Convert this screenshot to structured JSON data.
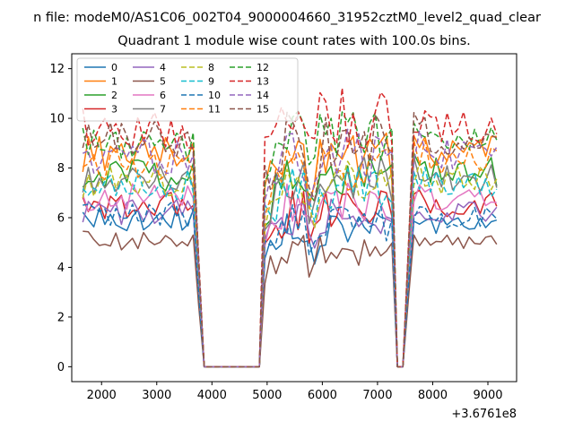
{
  "chart_data": {
    "type": "line",
    "suptitle": "n file: modeM0/AS1C06_002T04_9000004660_31952cztM0_level2_quad_clear",
    "title": "Quadrant 1 module wise count rates with 100.0s bins.",
    "xlabel": "",
    "ylabel": "",
    "offset_text": "+3.6761e8",
    "xlim": [
      1460,
      9520
    ],
    "ylim": [
      -0.6,
      12.6
    ],
    "xticks": [
      2000,
      3000,
      4000,
      5000,
      6000,
      7000,
      8000,
      9000
    ],
    "xtick_labels": [
      "2000",
      "3000",
      "4000",
      "5000",
      "6000",
      "7000",
      "8000",
      "9000"
    ],
    "yticks": [
      0,
      2,
      4,
      6,
      8,
      10,
      12
    ],
    "ytick_labels": [
      "0",
      "2",
      "4",
      "6",
      "8",
      "10",
      "12"
    ],
    "legend": {
      "location": "upper-left",
      "columns": 4
    },
    "grid": false,
    "x_start": 1660,
    "x_step": 100,
    "series": [
      {
        "name": "0",
        "color": "#1f77b4",
        "dash": "solid",
        "base": 6.4,
        "g1": 0.93,
        "g2": 0.87,
        "g3": 0.9
      },
      {
        "name": "1",
        "color": "#ff7f0e",
        "dash": "solid",
        "base": 9.0,
        "g1": 0.95,
        "g2": 0.95,
        "g3": 0.96
      },
      {
        "name": "2",
        "color": "#2ca02c",
        "dash": "solid",
        "base": 8.1,
        "g1": 0.95,
        "g2": 0.95,
        "g3": 0.97
      },
      {
        "name": "3",
        "color": "#d62728",
        "dash": "solid",
        "base": 7.0,
        "g1": 0.93,
        "g2": 0.9,
        "g3": 0.93
      },
      {
        "name": "4",
        "color": "#9467bd",
        "dash": "solid",
        "base": 6.7,
        "g1": 0.93,
        "g2": 0.9,
        "g3": 0.92
      },
      {
        "name": "5",
        "color": "#8c564b",
        "dash": "solid",
        "base": 5.5,
        "g1": 0.92,
        "g2": 0.85,
        "g3": 0.9
      },
      {
        "name": "6",
        "color": "#e377c2",
        "dash": "solid",
        "base": 7.3,
        "g1": 0.93,
        "g2": 0.92,
        "g3": 0.93
      },
      {
        "name": "7",
        "color": "#7f7f7f",
        "dash": "solid",
        "base": 7.9,
        "g1": 0.95,
        "g2": 0.95,
        "g3": 0.96
      },
      {
        "name": "8",
        "color": "#bcbd22",
        "dash": "dashed",
        "base": 7.8,
        "g1": 0.95,
        "g2": 0.95,
        "g3": 0.96
      },
      {
        "name": "9",
        "color": "#17becf",
        "dash": "dashed",
        "base": 7.7,
        "g1": 0.95,
        "g2": 0.95,
        "g3": 0.96
      },
      {
        "name": "10",
        "color": "#1f77b4",
        "dash": "dashed",
        "base": 6.6,
        "g1": 0.93,
        "g2": 0.88,
        "g3": 0.91
      },
      {
        "name": "11",
        "color": "#ff7f0e",
        "dash": "dashed",
        "base": 8.6,
        "g1": 0.95,
        "g2": 0.95,
        "g3": 0.96
      },
      {
        "name": "12",
        "color": "#2ca02c",
        "dash": "dashed",
        "base": 9.3,
        "g1": 0.96,
        "g2": 0.98,
        "g3": 0.98
      },
      {
        "name": "13",
        "color": "#d62728",
        "dash": "dashed",
        "base": 9.8,
        "g1": 0.98,
        "g2": 1.03,
        "g3": 0.98
      },
      {
        "name": "14",
        "color": "#9467bd",
        "dash": "dashed",
        "base": 8.9,
        "g1": 0.95,
        "g2": 0.96,
        "g3": 0.96
      },
      {
        "name": "15",
        "color": "#8c564b",
        "dash": "dashed",
        "base": 9.6,
        "g1": 0.95,
        "g2": 0.95,
        "g3": 0.96
      }
    ]
  }
}
